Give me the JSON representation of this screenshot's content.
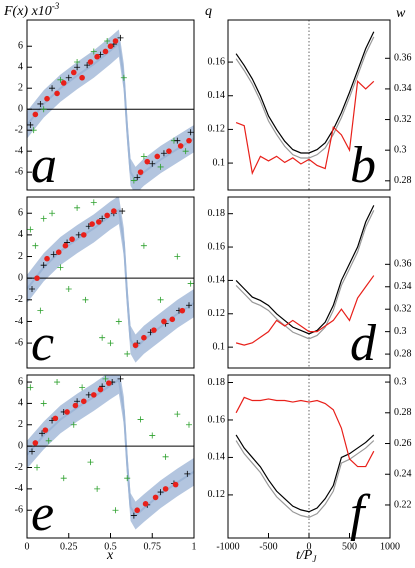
{
  "chart_data": [
    {
      "type": "scatter",
      "label": "a",
      "ylabel": "F(x) x10",
      "ylabel_exp": "-3",
      "xlim": [
        0,
        1
      ],
      "ylim": [
        -7.7,
        8.5
      ],
      "yticks": [
        -6,
        -4,
        -2,
        0,
        2,
        4,
        6
      ],
      "band": {
        "color": "#b3c5df",
        "x": [
          0,
          0.1,
          0.2,
          0.3,
          0.4,
          0.5,
          0.55,
          0.58,
          0.6,
          0.62,
          0.65,
          0.7,
          0.8,
          0.9,
          1
        ],
        "lower": [
          -2.8,
          -0.8,
          0.7,
          1.9,
          3.0,
          4.3,
          5.0,
          1.7,
          -3.3,
          -7.3,
          -8.1,
          -7.3,
          -6.1,
          -5.1,
          -4.1
        ],
        "upper": [
          -0.2,
          1.8,
          3.3,
          4.5,
          5.6,
          6.9,
          7.6,
          4.3,
          -0.7,
          -4.7,
          -5.5,
          -4.7,
          -3.5,
          -2.5,
          -1.5
        ]
      },
      "curve": {
        "color": "#9db5d6",
        "x": [
          0,
          0.1,
          0.2,
          0.3,
          0.4,
          0.5,
          0.55,
          0.58,
          0.6,
          0.62,
          0.65,
          0.7,
          0.8,
          0.9,
          1
        ],
        "values": [
          -1.5,
          0.5,
          2,
          3.2,
          4.3,
          5.6,
          6.3,
          3,
          -2,
          -6,
          -6.8,
          -6,
          -4.8,
          -3.8,
          -2.8
        ]
      },
      "series": [
        {
          "color": "#2ca02c",
          "marker": "cross",
          "x": [
            0.04,
            0.1,
            0.2,
            0.3,
            0.4,
            0.48,
            0.58,
            0.64,
            0.7,
            0.8,
            0.88,
            0.95
          ],
          "values": [
            -2,
            0,
            2.8,
            4.5,
            5.5,
            6.5,
            3,
            -6.8,
            -4.5,
            -5.5,
            -3,
            -4
          ]
        },
        {
          "color": "#000000",
          "marker": "cross",
          "x": [
            0.02,
            0.08,
            0.15,
            0.25,
            0.3,
            0.36,
            0.44,
            0.52,
            0.56,
            0.66,
            0.75,
            0.82,
            0.9,
            0.98
          ],
          "values": [
            -1.5,
            0.5,
            2,
            3,
            4,
            4.2,
            5.2,
            6.2,
            6.8,
            -6.5,
            -5.2,
            -4.2,
            -3,
            -2.2
          ]
        },
        {
          "color": "#e8201a",
          "marker": "dot",
          "x": [
            0.05,
            0.12,
            0.18,
            0.22,
            0.28,
            0.33,
            0.38,
            0.42,
            0.47,
            0.5,
            0.53,
            0.68,
            0.72,
            0.78,
            0.85,
            0.92,
            0.97
          ],
          "values": [
            -0.5,
            1,
            1.5,
            2.5,
            3.5,
            3,
            4.5,
            5,
            5.5,
            6,
            6.5,
            -6,
            -5,
            -4.5,
            -4,
            -3.5,
            -3
          ]
        }
      ]
    },
    {
      "type": "line",
      "label": "b",
      "ylabel": "q",
      "y2label": "w",
      "xlim": [
        -1000,
        1000
      ],
      "ylim": [
        0.084,
        0.185
      ],
      "yticks": [
        0.1,
        0.12,
        0.14,
        0.16
      ],
      "y2lim": [
        0.274,
        0.385
      ],
      "y2ticks": [
        0.28,
        0.3,
        0.32,
        0.34,
        0.36
      ],
      "x": [
        -900,
        -800,
        -700,
        -600,
        -500,
        -400,
        -300,
        -200,
        -100,
        0,
        100,
        200,
        300,
        400,
        500,
        600,
        700,
        800
      ],
      "series": [
        {
          "color": "#999999",
          "values": [
            0.162,
            0.155,
            0.147,
            0.137,
            0.125,
            0.117,
            0.11,
            0.105,
            0.103,
            0.103,
            0.105,
            0.109,
            0.117,
            0.127,
            0.139,
            0.152,
            0.165,
            0.175
          ]
        },
        {
          "color": "#000000",
          "values": [
            0.165,
            0.158,
            0.15,
            0.14,
            0.128,
            0.12,
            0.113,
            0.108,
            0.106,
            0.106,
            0.108,
            0.112,
            0.12,
            0.13,
            0.142,
            0.155,
            0.168,
            0.178
          ]
        },
        {
          "color": "#e8201a",
          "axis": "y2",
          "values": [
            0.318,
            0.316,
            0.285,
            0.296,
            0.293,
            0.296,
            0.292,
            0.295,
            0.291,
            0.294,
            0.29,
            0.288,
            0.315,
            0.31,
            0.3,
            0.345,
            0.34,
            0.345
          ]
        }
      ]
    },
    {
      "type": "scatter",
      "label": "c",
      "xlim": [
        0,
        1
      ],
      "ylim": [
        -8.3,
        7.5
      ],
      "yticks": [
        -6,
        -4,
        -2,
        0,
        2,
        4,
        6
      ],
      "band": {
        "color": "#b3c5df",
        "x": [
          0,
          0.1,
          0.2,
          0.3,
          0.4,
          0.5,
          0.55,
          0.58,
          0.6,
          0.62,
          0.65,
          0.7,
          0.8,
          0.9,
          1
        ],
        "lower": [
          -2.3,
          -0.3,
          1.2,
          2.3,
          3.3,
          4.5,
          5.0,
          2.0,
          -3.0,
          -7.0,
          -7.8,
          -7.0,
          -5.8,
          -4.6,
          -3.6
        ],
        "upper": [
          0.3,
          2.3,
          3.8,
          4.9,
          5.9,
          7.1,
          7.6,
          4.6,
          -0.4,
          -4.4,
          -5.2,
          -4.4,
          -3.2,
          -2.0,
          -1.0
        ]
      },
      "curve": {
        "color": "#9db5d6",
        "x": [
          0,
          0.1,
          0.2,
          0.3,
          0.4,
          0.5,
          0.55,
          0.58,
          0.6,
          0.62,
          0.65,
          0.7,
          0.8,
          0.9,
          1
        ],
        "values": [
          -1,
          1,
          2.5,
          3.6,
          4.6,
          5.8,
          6.3,
          3.3,
          -1.7,
          -5.7,
          -6.5,
          -5.7,
          -4.5,
          -3.3,
          -2.3
        ]
      },
      "series": [
        {
          "color": "#2ca02c",
          "marker": "cross",
          "x": [
            0.02,
            0.05,
            0.1,
            0.08,
            0.15,
            0.2,
            0.25,
            0.3,
            0.35,
            0.4,
            0.45,
            0.5,
            0.55,
            0.6,
            0.7,
            0.8,
            0.9,
            0.98
          ],
          "values": [
            4.5,
            3,
            5.5,
            -3,
            6,
            1,
            -1,
            6.5,
            -2,
            7,
            -5.5,
            -6,
            -4,
            -7,
            3,
            -2,
            2,
            -0.5
          ]
        },
        {
          "color": "#000000",
          "marker": "cross",
          "x": [
            0.03,
            0.1,
            0.16,
            0.24,
            0.31,
            0.37,
            0.45,
            0.52,
            0.57,
            0.66,
            0.74,
            0.83,
            0.91,
            0.97
          ],
          "values": [
            -1,
            1.2,
            2.2,
            3.3,
            4,
            4.8,
            5.5,
            6,
            6.2,
            -6,
            -5,
            -4.2,
            -3,
            -2.5
          ]
        },
        {
          "color": "#e8201a",
          "marker": "dot",
          "x": [
            0.06,
            0.12,
            0.19,
            0.23,
            0.27,
            0.34,
            0.39,
            0.43,
            0.48,
            0.52,
            0.65,
            0.7,
            0.76,
            0.82,
            0.87,
            0.93
          ],
          "values": [
            0,
            1.8,
            2.4,
            3,
            3.6,
            4,
            5,
            5.2,
            5.8,
            6.2,
            -6.2,
            -5.5,
            -4.8,
            -4,
            -3.8,
            -3
          ]
        }
      ]
    },
    {
      "type": "line",
      "label": "d",
      "xlim": [
        -1000,
        1000
      ],
      "ylim": [
        0.0875,
        0.19
      ],
      "yticks": [
        0.1,
        0.12,
        0.14,
        0.16,
        0.18
      ],
      "y2lim": [
        0.2676,
        0.42
      ],
      "y2ticks": [
        0.28,
        0.3,
        0.32,
        0.34,
        0.36
      ],
      "x": [
        -900,
        -800,
        -700,
        -600,
        -500,
        -400,
        -300,
        -200,
        -100,
        0,
        100,
        200,
        300,
        400,
        500,
        600,
        700,
        800
      ],
      "series": [
        {
          "color": "#999999",
          "values": [
            0.137,
            0.132,
            0.127,
            0.125,
            0.122,
            0.117,
            0.113,
            0.109,
            0.107,
            0.105,
            0.107,
            0.112,
            0.122,
            0.137,
            0.147,
            0.157,
            0.172,
            0.182
          ]
        },
        {
          "color": "#000000",
          "values": [
            0.14,
            0.135,
            0.13,
            0.128,
            0.125,
            0.12,
            0.116,
            0.112,
            0.11,
            0.108,
            0.11,
            0.115,
            0.125,
            0.14,
            0.15,
            0.16,
            0.175,
            0.185
          ]
        },
        {
          "color": "#e8201a",
          "axis": "y2",
          "values": [
            0.29,
            0.288,
            0.29,
            0.295,
            0.3,
            0.31,
            0.305,
            0.31,
            0.305,
            0.3,
            0.3,
            0.305,
            0.31,
            0.32,
            0.31,
            0.33,
            0.34,
            0.35
          ]
        }
      ]
    },
    {
      "type": "scatter",
      "label": "e",
      "xlabel": "x",
      "xlim": [
        0,
        1
      ],
      "xticks": [
        0,
        0.25,
        0.5,
        0.75,
        1
      ],
      "ylim": [
        -8.6,
        6.66
      ],
      "yticks": [
        -6,
        -4,
        -2,
        0,
        2,
        4,
        6
      ],
      "band": {
        "color": "#b3c5df",
        "x": [
          0,
          0.1,
          0.2,
          0.3,
          0.4,
          0.5,
          0.55,
          0.58,
          0.6,
          0.62,
          0.65,
          0.7,
          0.8,
          0.9,
          1
        ],
        "lower": [
          -2.1,
          -0.3,
          1.2,
          2.3,
          3.3,
          4.4,
          4.9,
          2.0,
          -3.0,
          -7.0,
          -7.8,
          -7.1,
          -5.8,
          -4.7,
          -3.7
        ],
        "upper": [
          0.5,
          2.3,
          3.8,
          4.9,
          5.9,
          7.0,
          7.5,
          4.6,
          -0.4,
          -4.4,
          -5.2,
          -4.5,
          -3.2,
          -2.1,
          -1.1
        ]
      },
      "curve": {
        "color": "#9db5d6",
        "x": [
          0,
          0.1,
          0.2,
          0.3,
          0.4,
          0.5,
          0.55,
          0.58,
          0.6,
          0.62,
          0.65,
          0.7,
          0.8,
          0.9,
          1
        ],
        "values": [
          -0.8,
          1,
          2.5,
          3.6,
          4.6,
          5.7,
          6.2,
          3.3,
          -1.7,
          -5.7,
          -6.5,
          -5.8,
          -4.5,
          -3.4,
          -2.4
        ]
      },
      "series": [
        {
          "color": "#2ca02c",
          "marker": "cross",
          "x": [
            0.02,
            0.06,
            0.1,
            0.13,
            0.18,
            0.22,
            0.28,
            0.33,
            0.38,
            0.42,
            0.47,
            0.53,
            0.6,
            0.68,
            0.75,
            0.83,
            0.9,
            0.97
          ],
          "values": [
            5.5,
            -2,
            4,
            0.5,
            6,
            -3,
            2,
            5.5,
            -1.5,
            -4,
            6.3,
            -6,
            -3,
            2.5,
            1,
            -1,
            3,
            2
          ]
        },
        {
          "color": "#000000",
          "marker": "cross",
          "x": [
            0.03,
            0.09,
            0.15,
            0.22,
            0.3,
            0.37,
            0.45,
            0.51,
            0.56,
            0.64,
            0.72,
            0.8,
            0.88,
            0.96
          ],
          "values": [
            -0.5,
            1.2,
            2.4,
            3.2,
            4.2,
            4.8,
            5.6,
            6,
            6.3,
            -6.5,
            -5.5,
            -4.3,
            -3.5,
            -2.6
          ]
        },
        {
          "color": "#e8201a",
          "marker": "dot",
          "x": [
            0.05,
            0.11,
            0.17,
            0.24,
            0.29,
            0.34,
            0.4,
            0.44,
            0.49,
            0.66,
            0.71,
            0.77,
            0.83,
            0.89
          ],
          "values": [
            0.3,
            1.5,
            2.6,
            3.2,
            3.8,
            4.2,
            4.8,
            5.3,
            5.9,
            -6,
            -5.4,
            -4.8,
            -4,
            -3.6
          ]
        }
      ]
    },
    {
      "type": "line",
      "label": "f",
      "xlabel": "t/P",
      "xlabel_sub": "J",
      "xlim": [
        -1000,
        1000
      ],
      "xticks": [
        -1000,
        -500,
        0,
        500,
        1000
      ],
      "ylim": [
        0.097,
        0.184
      ],
      "yticks": [
        0.12,
        0.14,
        0.16,
        0.18
      ],
      "y2lim": [
        0.1985,
        0.3046
      ],
      "y2ticks": [
        0.22,
        0.24,
        0.26,
        0.28,
        0.3
      ],
      "x": [
        -900,
        -800,
        -700,
        -600,
        -500,
        -400,
        -300,
        -200,
        -100,
        0,
        100,
        200,
        300,
        400,
        500,
        600,
        700,
        800
      ],
      "series": [
        {
          "color": "#999999",
          "values": [
            0.149,
            0.142,
            0.137,
            0.132,
            0.125,
            0.119,
            0.115,
            0.111,
            0.109,
            0.108,
            0.11,
            0.115,
            0.122,
            0.137,
            0.139,
            0.142,
            0.145,
            0.149
          ]
        },
        {
          "color": "#000000",
          "values": [
            0.152,
            0.145,
            0.14,
            0.135,
            0.128,
            0.122,
            0.118,
            0.114,
            0.112,
            0.111,
            0.113,
            0.118,
            0.125,
            0.14,
            0.142,
            0.145,
            0.148,
            0.152
          ]
        },
        {
          "color": "#e8201a",
          "axis": "y2",
          "values": [
            0.28,
            0.29,
            0.288,
            0.288,
            0.289,
            0.288,
            0.288,
            0.287,
            0.288,
            0.287,
            0.288,
            0.286,
            0.282,
            0.27,
            0.25,
            0.245,
            0.245,
            0.255
          ]
        }
      ]
    }
  ]
}
